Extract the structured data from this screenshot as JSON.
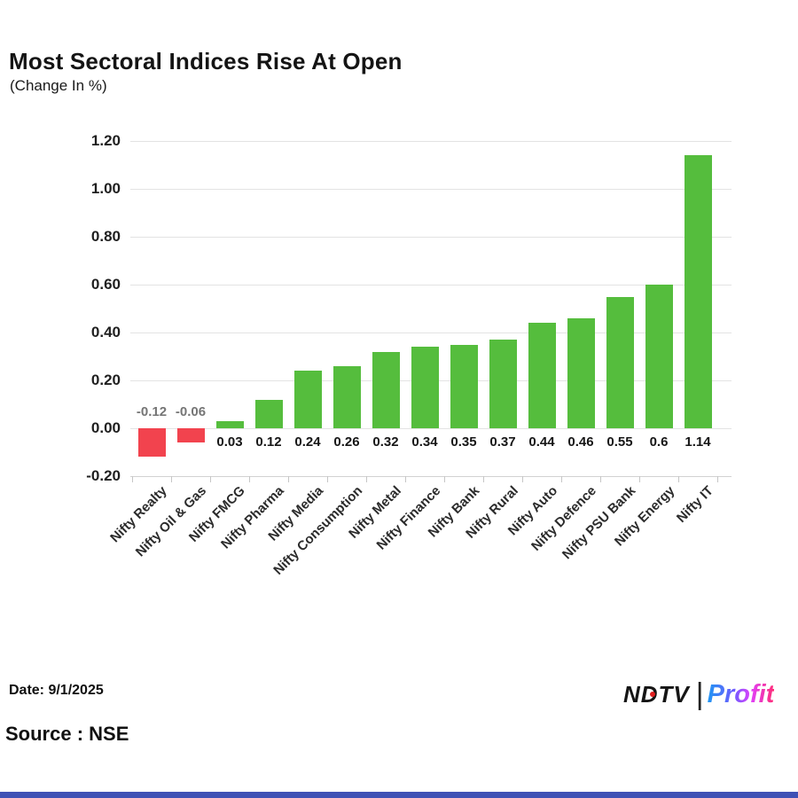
{
  "header": {
    "title": "Most Sectoral Indices Rise At Open",
    "subtitle": "(Change In %)"
  },
  "chart_data": {
    "type": "bar",
    "title": "Most Sectoral Indices Rise At Open",
    "subtitle": "(Change In %)",
    "categories": [
      "Nifty Realty",
      "Nifty Oil & Gas",
      "Nifty FMCG",
      "Nifty Pharma",
      "Nifty Media",
      "Nifty Consumption",
      "Nifty Metal",
      "Nifty Finance",
      "Nifty Bank",
      "Nifty Rural",
      "Nifty Auto",
      "Nifty Defence",
      "Nifty PSU Bank",
      "Nifty Energy",
      "Nifty IT"
    ],
    "values": [
      -0.12,
      -0.06,
      0.03,
      0.12,
      0.24,
      0.26,
      0.32,
      0.34,
      0.35,
      0.37,
      0.44,
      0.46,
      0.55,
      0.6,
      1.14
    ],
    "value_labels": [
      "-0.12",
      "-0.06",
      "0.03",
      "0.12",
      "0.24",
      "0.26",
      "0.32",
      "0.34",
      "0.35",
      "0.37",
      "0.44",
      "0.46",
      "0.55",
      "0.6",
      "1.14"
    ],
    "xlabel": "",
    "ylabel": "",
    "ylim": [
      -0.2,
      1.2
    ],
    "ytick_step": 0.2,
    "ytick_labels": [
      "1.20",
      "1.00",
      "0.80",
      "0.60",
      "0.40",
      "0.20",
      "0.00",
      "-0.20"
    ],
    "grid": true,
    "legend": false,
    "positive_color": "#55bd3d",
    "negative_color": "#f2434e",
    "positive_label_color": "#161616",
    "negative_label_color": "#757575"
  },
  "footer": {
    "date_label": "Date: 9/1/2025",
    "source_label": "Source : NSE",
    "logo": {
      "ndtv_text": "NDTV",
      "separator": "|",
      "profit_text": "Profit"
    }
  },
  "colors": {
    "grid": "#e3e3e3",
    "axis": "#d2d2d2",
    "bottom_accent_bar": "#3f51b5"
  }
}
